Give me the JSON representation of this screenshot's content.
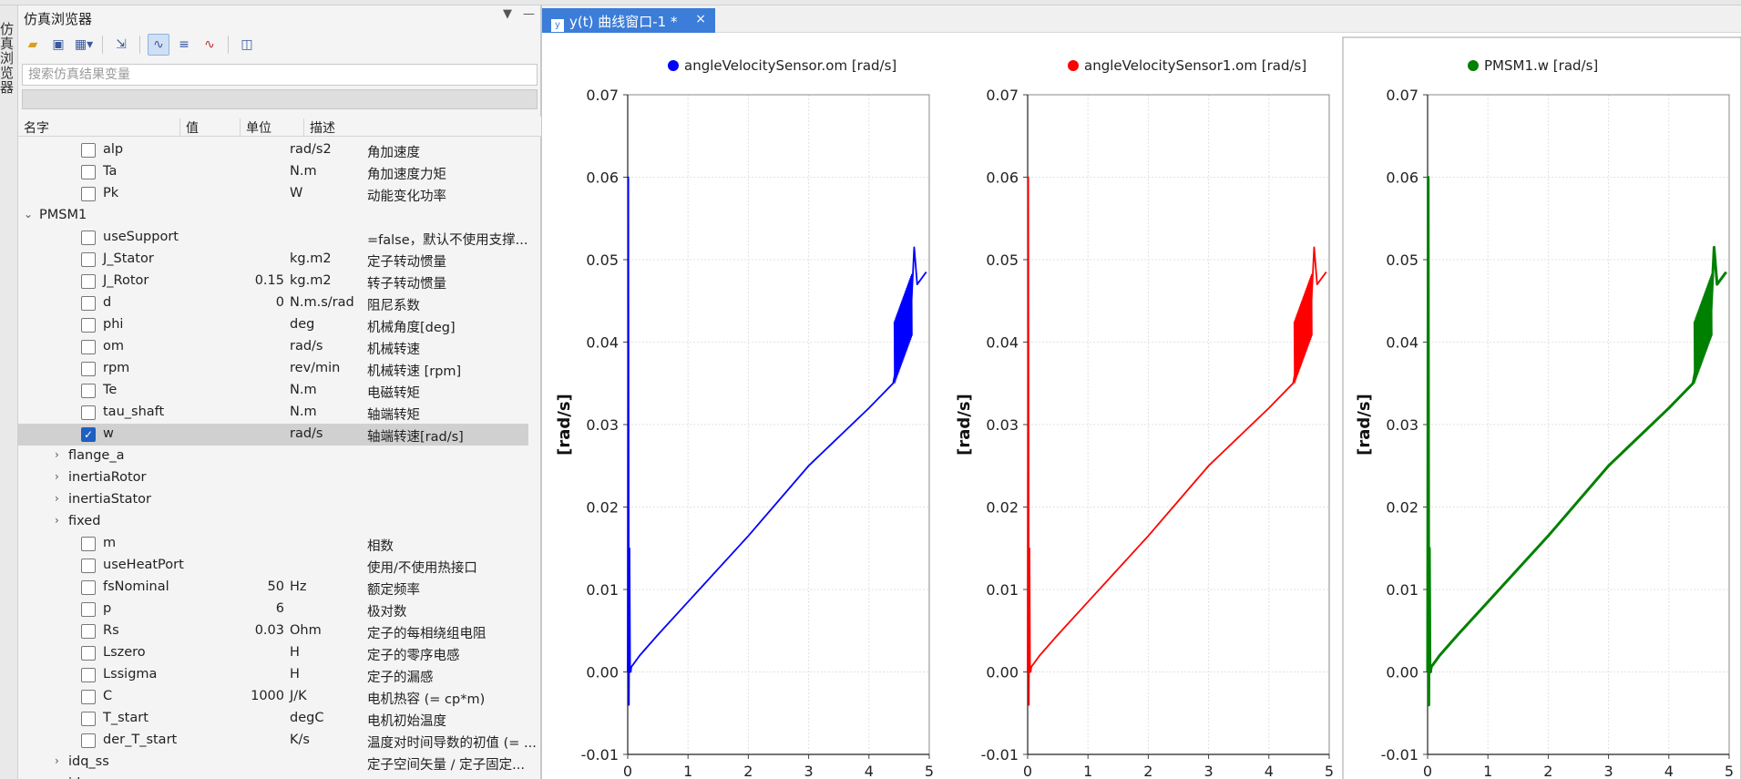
{
  "side_tab": "仿真浏览器",
  "browser": {
    "title": "仿真浏览器",
    "search_placeholder": "搜索仿真结果变量",
    "columns": [
      "名字",
      "值",
      "单位",
      "描述"
    ],
    "rows": [
      {
        "depth": 2,
        "type": "cb",
        "name": "alp",
        "value": "",
        "unit": "rad/s2",
        "desc": "角加速度"
      },
      {
        "depth": 2,
        "type": "cb",
        "name": "Ta",
        "value": "",
        "unit": "N.m",
        "desc": "角加速度力矩"
      },
      {
        "depth": 2,
        "type": "cb",
        "name": "Pk",
        "value": "",
        "unit": "W",
        "desc": "动能变化功率"
      },
      {
        "depth": 1,
        "type": "open",
        "name": "PMSM1",
        "value": "",
        "unit": "",
        "desc": ""
      },
      {
        "depth": 2,
        "type": "cb",
        "name": "useSupport",
        "value": "",
        "unit": "",
        "desc": "=false，默认不使用支撑..."
      },
      {
        "depth": 2,
        "type": "cb",
        "name": "J_Stator",
        "value": "",
        "unit": "kg.m2",
        "desc": "定子转动惯量"
      },
      {
        "depth": 2,
        "type": "cb",
        "name": "J_Rotor",
        "value": "0.15",
        "unit": "kg.m2",
        "desc": "转子转动惯量"
      },
      {
        "depth": 2,
        "type": "cb",
        "name": "d",
        "value": "0",
        "unit": "N.m.s/rad",
        "desc": "阻尼系数"
      },
      {
        "depth": 2,
        "type": "cb",
        "name": "phi",
        "value": "",
        "unit": "deg",
        "desc": "机械角度[deg]"
      },
      {
        "depth": 2,
        "type": "cb",
        "name": "om",
        "value": "",
        "unit": "rad/s",
        "desc": "机械转速"
      },
      {
        "depth": 2,
        "type": "cb",
        "name": "rpm",
        "value": "",
        "unit": "rev/min",
        "desc": "机械转速 [rpm]"
      },
      {
        "depth": 2,
        "type": "cb",
        "name": "Te",
        "value": "",
        "unit": "N.m",
        "desc": "电磁转矩"
      },
      {
        "depth": 2,
        "type": "cb",
        "name": "tau_shaft",
        "value": "",
        "unit": "N.m",
        "desc": "轴端转矩"
      },
      {
        "depth": 2,
        "type": "cb",
        "checked": true,
        "name": "w",
        "value": "",
        "unit": "rad/s",
        "desc": "轴端转速[rad/s]"
      },
      {
        "depth": 2,
        "type": "closed",
        "name": "flange_a",
        "value": "",
        "unit": "",
        "desc": ""
      },
      {
        "depth": 2,
        "type": "closed",
        "name": "inertiaRotor",
        "value": "",
        "unit": "",
        "desc": ""
      },
      {
        "depth": 2,
        "type": "closed",
        "name": "inertiaStator",
        "value": "",
        "unit": "",
        "desc": ""
      },
      {
        "depth": 2,
        "type": "closed",
        "name": "fixed",
        "value": "",
        "unit": "",
        "desc": ""
      },
      {
        "depth": 2,
        "type": "cb",
        "name": "m",
        "value": "",
        "unit": "",
        "desc": "相数"
      },
      {
        "depth": 2,
        "type": "cb",
        "name": "useHeatPort",
        "value": "",
        "unit": "",
        "desc": "使用/不使用热接口"
      },
      {
        "depth": 2,
        "type": "cb",
        "name": "fsNominal",
        "value": "50",
        "unit": "Hz",
        "desc": "额定频率"
      },
      {
        "depth": 2,
        "type": "cb",
        "name": "p",
        "value": "6",
        "unit": "",
        "desc": "极对数"
      },
      {
        "depth": 2,
        "type": "cb",
        "name": "Rs",
        "value": "0.03",
        "unit": "Ohm",
        "desc": "定子的每相绕组电阻"
      },
      {
        "depth": 2,
        "type": "cb",
        "name": "Lszero",
        "value": "",
        "unit": "H",
        "desc": "定子的零序电感"
      },
      {
        "depth": 2,
        "type": "cb",
        "name": "Lssigma",
        "value": "",
        "unit": "H",
        "desc": "定子的漏感"
      },
      {
        "depth": 2,
        "type": "cb",
        "name": "C",
        "value": "1000",
        "unit": "J/K",
        "desc": "电机热容 (= cp*m)"
      },
      {
        "depth": 2,
        "type": "cb",
        "name": "T_start",
        "value": "",
        "unit": "degC",
        "desc": "电机初始温度"
      },
      {
        "depth": 2,
        "type": "cb",
        "name": "der_T_start",
        "value": "",
        "unit": "K/s",
        "desc": "温度对时间导数的初值 (= ..."
      },
      {
        "depth": 2,
        "type": "closed",
        "name": "idq_ss",
        "value": "",
        "unit": "",
        "desc": "定子空间矢量 / 定子固定..."
      },
      {
        "depth": 2,
        "type": "closed",
        "name": "idq_sr",
        "value": "",
        "unit": "",
        "desc": "定子空间矢量 / 转子固定..."
      }
    ]
  },
  "plot_window": {
    "tab_title": "y(t) 曲线窗口-1 *",
    "tab_close": "×"
  },
  "chart_data": [
    {
      "type": "line",
      "title": "angleVelocitySensor.om [rad/s]",
      "color": "#0000ff",
      "ylabel": "[rad/s]",
      "xlabel": "",
      "ylim": [
        -0.01,
        0.07
      ],
      "xlim": [
        0,
        5
      ],
      "yticks": [
        "0.07",
        "0.06",
        "0.05",
        "0.04",
        "0.03",
        "0.02",
        "0.01",
        "0.00",
        "-0.01"
      ],
      "xticks": [
        "0",
        "1",
        "2",
        "3",
        "4",
        "5"
      ],
      "grid": true,
      "x": [
        0,
        0.01,
        0.02,
        0.03,
        0.04,
        0.05,
        0.06,
        0.08,
        0.1,
        0.2,
        0.5,
        1,
        2,
        3,
        4,
        4.4,
        4.6,
        4.7,
        4.75,
        4.8,
        4.95
      ],
      "y": [
        0,
        0.06,
        -0.004,
        0.015,
        0.0,
        0.0,
        0.0006,
        0.0008,
        0.001,
        0.002,
        0.0045,
        0.0085,
        0.0165,
        0.025,
        0.032,
        0.035,
        0.0425,
        0.044,
        0.0515,
        0.047,
        0.0485
      ]
    },
    {
      "type": "line",
      "title": "angleVelocitySensor1.om [rad/s]",
      "color": "#ff0000",
      "ylabel": "[rad/s]",
      "xlabel": "",
      "ylim": [
        -0.01,
        0.07
      ],
      "xlim": [
        0,
        5
      ],
      "yticks": [
        "0.07",
        "0.06",
        "0.05",
        "0.04",
        "0.03",
        "0.02",
        "0.01",
        "0.00",
        "-0.01"
      ],
      "xticks": [
        "0",
        "1",
        "2",
        "3",
        "4",
        "5"
      ],
      "grid": true,
      "x": [
        0,
        0.01,
        0.02,
        0.03,
        0.04,
        0.05,
        0.06,
        0.08,
        0.1,
        0.2,
        0.5,
        1,
        2,
        3,
        4,
        4.4,
        4.6,
        4.7,
        4.75,
        4.8,
        4.95
      ],
      "y": [
        0,
        0.06,
        -0.004,
        0.015,
        0.0,
        0.0,
        0.0006,
        0.0008,
        0.001,
        0.002,
        0.0045,
        0.0085,
        0.0165,
        0.025,
        0.032,
        0.035,
        0.0425,
        0.044,
        0.0515,
        0.047,
        0.0485
      ]
    },
    {
      "type": "line",
      "title": "PMSM1.w [rad/s]",
      "color": "#008000",
      "ylabel": "[rad/s]",
      "xlabel": "",
      "ylim": [
        -0.01,
        0.07
      ],
      "xlim": [
        0,
        5
      ],
      "yticks": [
        "0.07",
        "0.06",
        "0.05",
        "0.04",
        "0.03",
        "0.02",
        "0.01",
        "0.00",
        "-0.01"
      ],
      "xticks": [
        "0",
        "1",
        "2",
        "3",
        "4",
        "5"
      ],
      "grid": true,
      "x": [
        0,
        0.01,
        0.02,
        0.03,
        0.04,
        0.05,
        0.06,
        0.08,
        0.1,
        0.2,
        0.5,
        1,
        2,
        3,
        4,
        4.4,
        4.6,
        4.7,
        4.75,
        4.8,
        4.95
      ],
      "y": [
        0,
        0.06,
        -0.004,
        0.015,
        0.0,
        0.0,
        0.0006,
        0.0008,
        0.001,
        0.002,
        0.0045,
        0.0085,
        0.0165,
        0.025,
        0.032,
        0.035,
        0.0425,
        0.044,
        0.0515,
        0.047,
        0.0485
      ]
    }
  ]
}
